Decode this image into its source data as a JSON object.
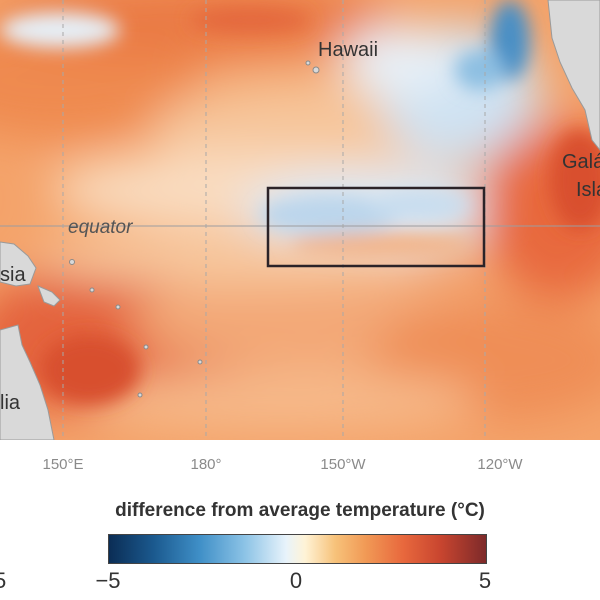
{
  "map": {
    "place_labels": {
      "hawaii": "Hawaii",
      "equator": "equator",
      "galapagos_line1": "Galá",
      "galapagos_line2": "Isla",
      "asia": "sia",
      "australia": "lia"
    },
    "longitude_ticks": [
      "150°E",
      "180°",
      "150°W",
      "120°W"
    ],
    "land_color": "#d9d9d9",
    "region_box_color": "#2b2328"
  },
  "legend": {
    "title": "difference from average temperature (°C)",
    "min_label": "−5",
    "mid_label": "0",
    "max_label": "5",
    "cut_label": "5",
    "scale_min": -5,
    "scale_max": 5,
    "cold_color": "#0b2d55",
    "hot_color": "#7d2a2a"
  }
}
